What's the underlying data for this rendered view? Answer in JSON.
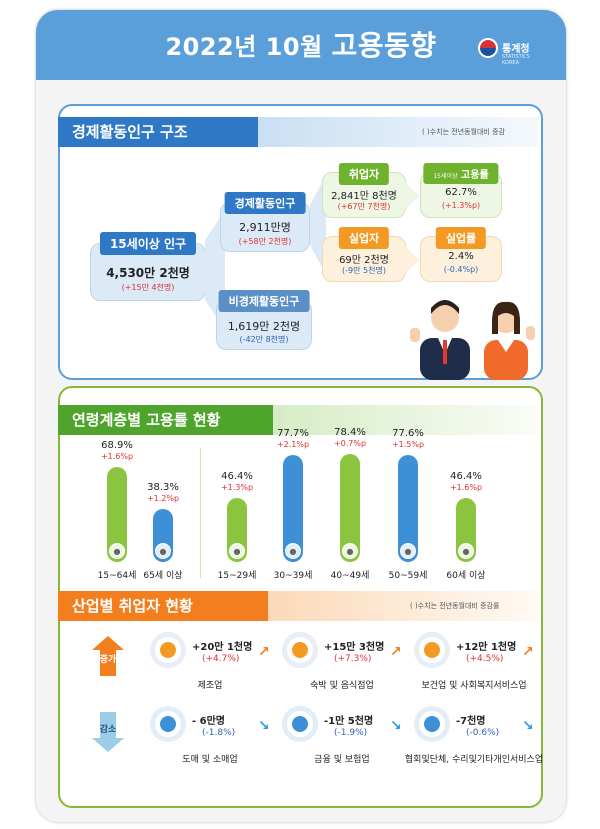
{
  "header": {
    "title_prefix": "2022년 10월",
    "title_main": "고용동향",
    "logo_text": "통계청",
    "logo_sub": "STATISTICS KOREA"
  },
  "structure": {
    "title": "경제활동인구 구조",
    "note": "( )수치는 전년동월대비 증감",
    "pop15": {
      "label": "15세이상 인구",
      "value": "4,530만 2천명",
      "change": "(+15만 4천명)"
    },
    "active": {
      "label": "경제활동인구",
      "value": "2,911만명",
      "change": "(+58만 2천명)"
    },
    "inactive": {
      "label": "비경제활동인구",
      "value": "1,619만 2천명",
      "change": "(-42만 8천명)"
    },
    "employed": {
      "label": "취업자",
      "value": "2,841만 8천명",
      "change": "(+67만 7천명)"
    },
    "employment_rate": {
      "label_small": "15세이상",
      "label": "고용률",
      "value": "62.7%",
      "change": "(+1.3%p)"
    },
    "unemployed": {
      "label": "실업자",
      "value": "69만 2천명",
      "change": "(-9만 5천명)"
    },
    "unemployment_rate": {
      "label": "실업률",
      "value": "2.4%",
      "change": "(-0.4%p)"
    }
  },
  "age": {
    "title": "연령계층별 고용률 현황",
    "groups": [
      {
        "label": "15~64세",
        "value": "68.9%",
        "change": "+1.6%p",
        "rate": 68.9,
        "color": "#8bc53f"
      },
      {
        "label": "65세 이상",
        "value": "38.3%",
        "change": "+1.2%p",
        "rate": 38.3,
        "color": "#3d8fd6"
      },
      {
        "label": "15~29세",
        "value": "46.4%",
        "change": "+1.3%p",
        "rate": 46.4,
        "color": "#8bc53f"
      },
      {
        "label": "30~39세",
        "value": "77.7%",
        "change": "+2.1%p",
        "rate": 77.7,
        "color": "#3d8fd6"
      },
      {
        "label": "40~49세",
        "value": "78.4%",
        "change": "+0.7%p",
        "rate": 78.4,
        "color": "#8bc53f"
      },
      {
        "label": "50~59세",
        "value": "77.6%",
        "change": "+1.5%p",
        "rate": 77.6,
        "color": "#3d8fd6"
      },
      {
        "label": "60세 이상",
        "value": "46.4%",
        "change": "+1.6%p",
        "rate": 46.4,
        "color": "#8bc53f"
      }
    ]
  },
  "industry": {
    "title": "산업별 취업자 현황",
    "note": "( )수치는 전년동월대비 증감률",
    "increase_label": "증가",
    "decrease_label": "감소",
    "increase": [
      {
        "name": "제조업",
        "value": "+20만 1천명",
        "change": "(+4.7%)",
        "icon": "gear-icon"
      },
      {
        "name": "숙박 및 음식점업",
        "value": "+15만 3천명",
        "change": "(+7.3%)",
        "icon": "dining-icon"
      },
      {
        "name": "보건업 및 사회복지서비스업",
        "value": "+12만 1천명",
        "change": "(+4.5%)",
        "icon": "medical-kit-icon"
      }
    ],
    "decrease": [
      {
        "name": "도매 및 소매업",
        "value": "- 6만명",
        "change": "(-1.8%)",
        "icon": "basket-icon"
      },
      {
        "name": "금융 및 보험업",
        "value": "-1만 5천명",
        "change": "(-1.9%)",
        "icon": "money-icon"
      },
      {
        "name": "협회및단체, 수리및기타개인서비스업",
        "value": "-7천명",
        "change": "(-0.6%)",
        "icon": "tools-icon"
      }
    ]
  },
  "colors": {
    "blue": "#2e78c6",
    "green": "#4fa52c",
    "orange": "#f37e1e",
    "red": "#e0312e"
  }
}
